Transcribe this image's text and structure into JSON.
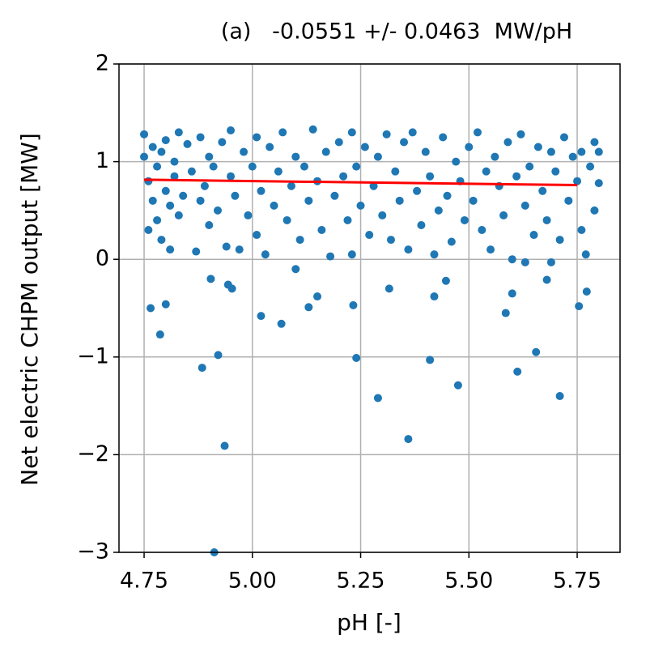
{
  "chart_data": {
    "type": "scatter",
    "title": "(a)   -0.0551 +/- 0.0463  MW/pH",
    "x_label": "pH [-]",
    "y_label": "Net electric CHPM output [MW]",
    "xlim": [
      4.692,
      5.849
    ],
    "ylim": [
      -3,
      2
    ],
    "xticks": [
      {
        "value": 4.75,
        "label": "4.75"
      },
      {
        "value": 5.0,
        "label": "5.00"
      },
      {
        "value": 5.25,
        "label": "5.25"
      },
      {
        "value": 5.5,
        "label": "5.50"
      },
      {
        "value": 5.75,
        "label": "5.75"
      }
    ],
    "yticks": [
      {
        "value": -3,
        "label": "−3"
      },
      {
        "value": -2,
        "label": "−2"
      },
      {
        "value": -1,
        "label": "−1"
      },
      0,
      1,
      2
    ],
    "grid": true,
    "series": [
      {
        "style": "points",
        "color": "#1f77b4",
        "x": [
          4.765,
          4.787,
          4.8,
          4.884,
          4.904,
          4.912,
          4.921,
          4.936,
          4.944,
          4.953,
          5.02,
          5.067,
          5.1,
          5.13,
          5.15,
          5.233,
          5.24,
          5.29,
          5.316,
          5.36,
          5.41,
          5.42,
          5.447,
          5.475,
          5.585,
          5.6,
          5.612,
          5.655,
          5.68,
          5.71,
          5.754,
          5.772,
          5.69,
          5.63,
          4.75,
          4.75,
          4.76,
          4.76,
          4.77,
          4.77,
          4.78,
          4.78,
          4.79,
          4.79,
          4.8,
          4.8,
          4.81,
          4.81,
          4.82,
          4.82,
          4.83,
          4.83,
          4.84,
          4.85,
          4.86,
          4.87,
          4.88,
          4.88,
          4.89,
          4.9,
          4.9,
          4.91,
          4.92,
          4.93,
          4.94,
          4.95,
          4.95,
          4.96,
          4.97,
          4.98,
          4.99,
          5.0,
          5.01,
          5.01,
          5.02,
          5.03,
          5.04,
          5.05,
          5.06,
          5.07,
          5.08,
          5.09,
          5.1,
          5.11,
          5.12,
          5.13,
          5.14,
          5.15,
          5.16,
          5.17,
          5.18,
          5.19,
          5.2,
          5.21,
          5.22,
          5.23,
          5.23,
          5.24,
          5.25,
          5.26,
          5.27,
          5.28,
          5.29,
          5.3,
          5.31,
          5.32,
          5.33,
          5.34,
          5.35,
          5.36,
          5.37,
          5.38,
          5.39,
          5.4,
          5.41,
          5.42,
          5.43,
          5.44,
          5.45,
          5.46,
          5.47,
          5.48,
          5.49,
          5.5,
          5.51,
          5.52,
          5.53,
          5.54,
          5.55,
          5.56,
          5.57,
          5.58,
          5.59,
          5.6,
          5.61,
          5.62,
          5.63,
          5.64,
          5.65,
          5.66,
          5.67,
          5.68,
          5.69,
          5.7,
          5.71,
          5.72,
          5.73,
          5.74,
          5.75,
          5.76,
          5.76,
          5.77,
          5.78,
          5.79,
          5.79,
          5.8,
          5.8
        ],
        "values": [
          -0.5,
          -0.77,
          -0.46,
          -1.11,
          -0.2,
          -3.0,
          -0.98,
          -1.91,
          -0.26,
          -0.3,
          -0.58,
          -0.66,
          -0.1,
          -0.49,
          -0.38,
          -0.47,
          -1.01,
          -1.42,
          -0.3,
          -1.84,
          -1.03,
          -0.38,
          -0.22,
          -1.29,
          -0.55,
          -0.35,
          -1.15,
          -0.95,
          -0.21,
          -1.4,
          -0.48,
          -0.33,
          -0.03,
          -0.03,
          1.28,
          1.05,
          0.8,
          0.3,
          1.15,
          0.6,
          0.95,
          0.4,
          1.1,
          0.2,
          0.7,
          1.22,
          0.55,
          0.1,
          1.0,
          0.85,
          1.3,
          0.45,
          0.65,
          1.18,
          0.9,
          0.08,
          0.6,
          1.25,
          0.75,
          1.05,
          0.35,
          0.95,
          0.5,
          1.2,
          0.13,
          0.85,
          1.32,
          0.65,
          0.1,
          1.1,
          0.45,
          0.95,
          0.25,
          1.25,
          0.7,
          0.05,
          1.15,
          0.55,
          0.9,
          1.3,
          0.4,
          0.75,
          1.05,
          0.2,
          0.95,
          0.6,
          1.33,
          0.8,
          0.3,
          1.1,
          0.03,
          0.65,
          1.2,
          0.85,
          0.4,
          1.3,
          0.05,
          0.95,
          0.55,
          1.15,
          0.25,
          0.75,
          1.05,
          0.45,
          1.28,
          0.2,
          0.9,
          0.6,
          1.2,
          0.1,
          1.3,
          0.7,
          0.35,
          1.1,
          0.85,
          0.05,
          0.5,
          1.25,
          0.65,
          0.18,
          1.0,
          0.8,
          0.4,
          1.15,
          0.6,
          1.3,
          0.3,
          0.9,
          0.1,
          1.05,
          0.75,
          0.45,
          1.2,
          0.0,
          0.85,
          1.28,
          0.55,
          0.95,
          0.25,
          1.15,
          0.7,
          0.4,
          1.1,
          0.9,
          0.2,
          1.25,
          0.6,
          1.05,
          0.8,
          0.3,
          1.1,
          0.05,
          0.95,
          1.2,
          0.5,
          1.1,
          0.78
        ]
      },
      {
        "style": "line",
        "color": "#ff0000",
        "x": [
          4.75,
          5.75
        ],
        "values": [
          0.815,
          0.76
        ]
      }
    ]
  }
}
